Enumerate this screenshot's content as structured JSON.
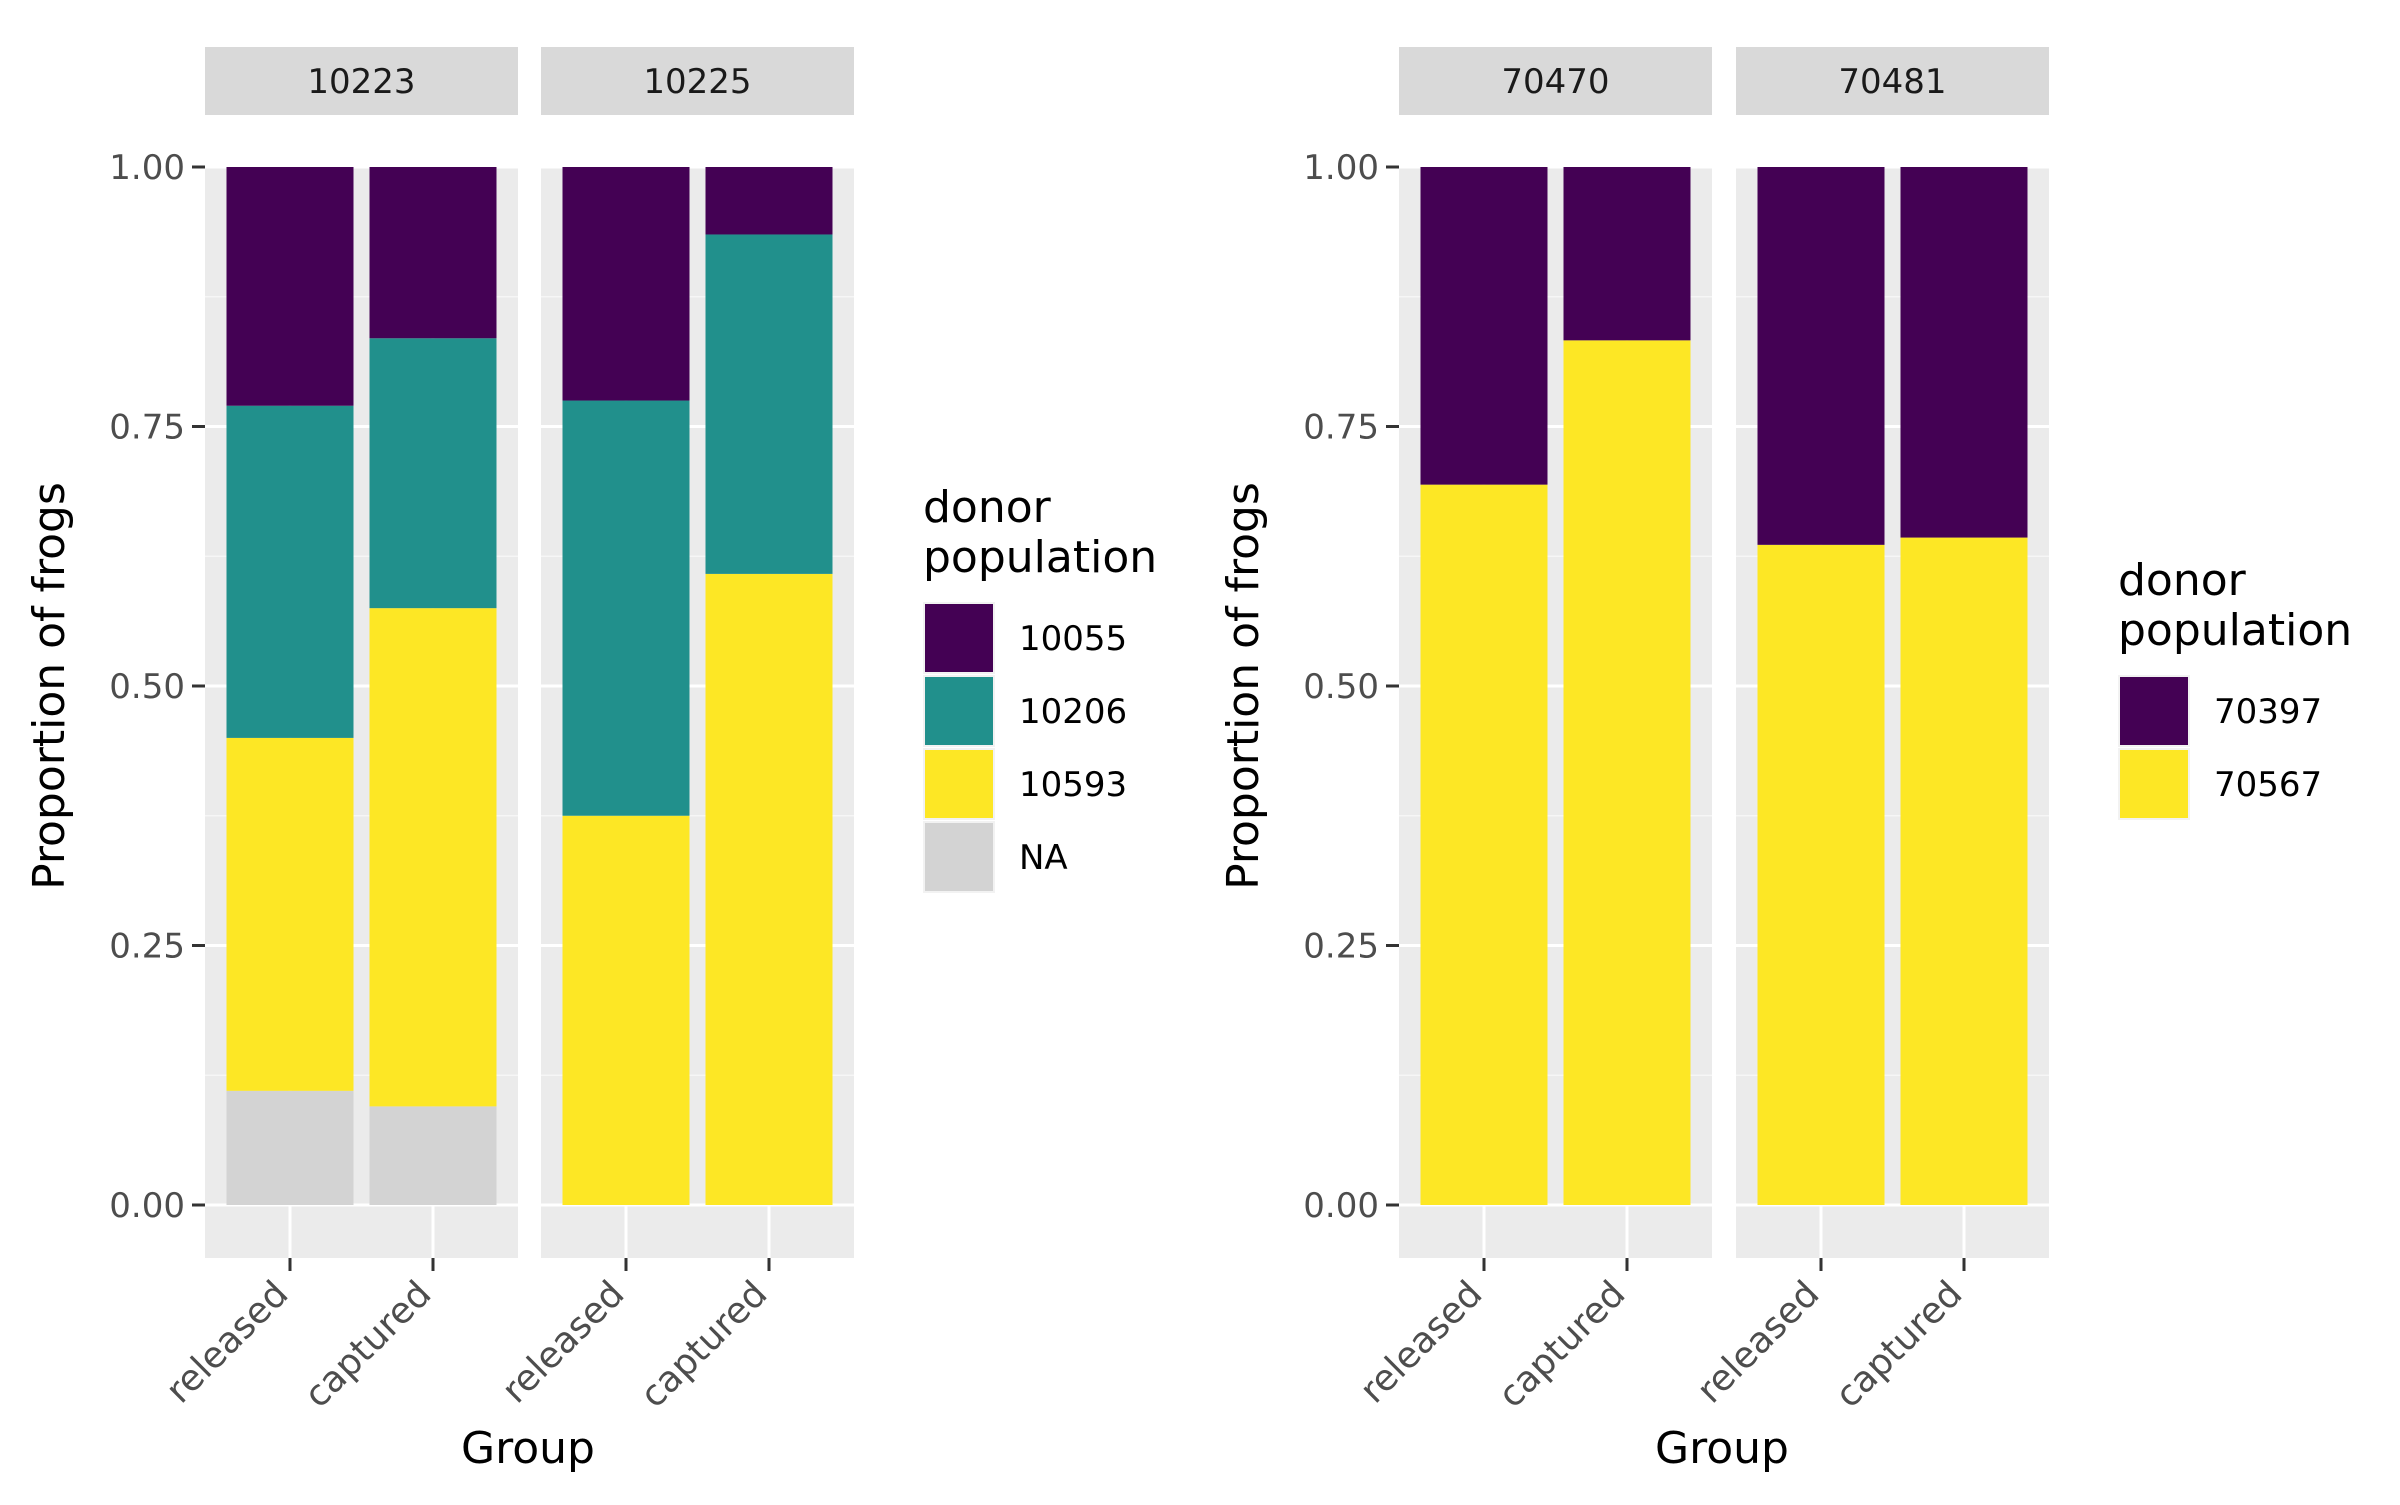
{
  "chart_data": [
    {
      "type": "bar",
      "stacked": true,
      "ylabel": "Proportion of frogs",
      "xlabel": "Group",
      "ylim": [
        0,
        1
      ],
      "yticks": [
        "0.00",
        "0.25",
        "0.50",
        "0.75",
        "1.00"
      ],
      "categories": [
        "released",
        "captured"
      ],
      "legend": {
        "title_line1": "donor",
        "title_line2": "population",
        "entries": [
          {
            "label": "10055",
            "color": "#440154"
          },
          {
            "label": "10206",
            "color": "#21908C"
          },
          {
            "label": "10593",
            "color": "#FDE725"
          },
          {
            "label": "NA",
            "color": "#D3D3D3"
          }
        ]
      },
      "panels": [
        {
          "label": "10223",
          "bars": [
            {
              "category": "released",
              "segments": [
                {
                  "series": "NA",
                  "value": 0.11
                },
                {
                  "series": "10593",
                  "value": 0.34
                },
                {
                  "series": "10206",
                  "value": 0.32
                },
                {
                  "series": "10055",
                  "value": 0.23
                }
              ]
            },
            {
              "category": "captured",
              "segments": [
                {
                  "series": "NA",
                  "value": 0.095
                },
                {
                  "series": "10593",
                  "value": 0.48
                },
                {
                  "series": "10206",
                  "value": 0.26
                },
                {
                  "series": "10055",
                  "value": 0.165
                }
              ]
            }
          ]
        },
        {
          "label": "10225",
          "bars": [
            {
              "category": "released",
              "segments": [
                {
                  "series": "10593",
                  "value": 0.375
                },
                {
                  "series": "10206",
                  "value": 0.4
                },
                {
                  "series": "10055",
                  "value": 0.225
                }
              ]
            },
            {
              "category": "captured",
              "segments": [
                {
                  "series": "10593",
                  "value": 0.608
                },
                {
                  "series": "10206",
                  "value": 0.327
                },
                {
                  "series": "10055",
                  "value": 0.065
                }
              ]
            }
          ]
        }
      ]
    },
    {
      "type": "bar",
      "stacked": true,
      "ylabel": "Proportion of frogs",
      "xlabel": "Group",
      "ylim": [
        0,
        1
      ],
      "yticks": [
        "0.00",
        "0.25",
        "0.50",
        "0.75",
        "1.00"
      ],
      "categories": [
        "released",
        "captured"
      ],
      "legend": {
        "title_line1": "donor",
        "title_line2": "population",
        "entries": [
          {
            "label": "70397",
            "color": "#440154"
          },
          {
            "label": "70567",
            "color": "#FDE725"
          }
        ]
      },
      "panels": [
        {
          "label": "70470",
          "bars": [
            {
              "category": "released",
              "segments": [
                {
                  "series": "70567",
                  "value": 0.694
                },
                {
                  "series": "70397",
                  "value": 0.306
                }
              ]
            },
            {
              "category": "captured",
              "segments": [
                {
                  "series": "70567",
                  "value": 0.833
                },
                {
                  "series": "70397",
                  "value": 0.167
                }
              ]
            }
          ]
        },
        {
          "label": "70481",
          "bars": [
            {
              "category": "released",
              "segments": [
                {
                  "series": "70567",
                  "value": 0.636
                },
                {
                  "series": "70397",
                  "value": 0.364
                }
              ]
            },
            {
              "category": "captured",
              "segments": [
                {
                  "series": "70567",
                  "value": 0.643
                },
                {
                  "series": "70397",
                  "value": 0.357
                }
              ]
            }
          ]
        }
      ]
    }
  ]
}
